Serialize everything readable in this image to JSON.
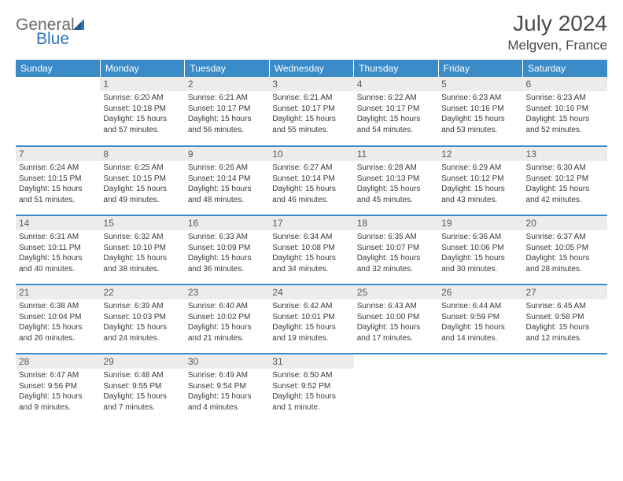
{
  "logo": {
    "part1": "General",
    "part2": "Blue"
  },
  "title": "July 2024",
  "location": "Melgven, France",
  "colors": {
    "header_bg": "#3b8bc9",
    "header_text": "#ffffff",
    "daynum_bg": "#ececec",
    "daynum_text": "#5a5a5a",
    "cell_text": "#3a3a3a",
    "row_border": "#3b8bc9",
    "logo_gray": "#6a6a6a",
    "logo_blue": "#2f74b5",
    "title_color": "#4a4a4a"
  },
  "day_headers": [
    "Sunday",
    "Monday",
    "Tuesday",
    "Wednesday",
    "Thursday",
    "Friday",
    "Saturday"
  ],
  "weeks": [
    [
      {
        "empty": true
      },
      {
        "n": "1",
        "sunrise": "6:20 AM",
        "sunset": "10:18 PM",
        "daylight": "15 hours and 57 minutes."
      },
      {
        "n": "2",
        "sunrise": "6:21 AM",
        "sunset": "10:17 PM",
        "daylight": "15 hours and 56 minutes."
      },
      {
        "n": "3",
        "sunrise": "6:21 AM",
        "sunset": "10:17 PM",
        "daylight": "15 hours and 55 minutes."
      },
      {
        "n": "4",
        "sunrise": "6:22 AM",
        "sunset": "10:17 PM",
        "daylight": "15 hours and 54 minutes."
      },
      {
        "n": "5",
        "sunrise": "6:23 AM",
        "sunset": "10:16 PM",
        "daylight": "15 hours and 53 minutes."
      },
      {
        "n": "6",
        "sunrise": "6:23 AM",
        "sunset": "10:16 PM",
        "daylight": "15 hours and 52 minutes."
      }
    ],
    [
      {
        "n": "7",
        "sunrise": "6:24 AM",
        "sunset": "10:15 PM",
        "daylight": "15 hours and 51 minutes."
      },
      {
        "n": "8",
        "sunrise": "6:25 AM",
        "sunset": "10:15 PM",
        "daylight": "15 hours and 49 minutes."
      },
      {
        "n": "9",
        "sunrise": "6:26 AM",
        "sunset": "10:14 PM",
        "daylight": "15 hours and 48 minutes."
      },
      {
        "n": "10",
        "sunrise": "6:27 AM",
        "sunset": "10:14 PM",
        "daylight": "15 hours and 46 minutes."
      },
      {
        "n": "11",
        "sunrise": "6:28 AM",
        "sunset": "10:13 PM",
        "daylight": "15 hours and 45 minutes."
      },
      {
        "n": "12",
        "sunrise": "6:29 AM",
        "sunset": "10:12 PM",
        "daylight": "15 hours and 43 minutes."
      },
      {
        "n": "13",
        "sunrise": "6:30 AM",
        "sunset": "10:12 PM",
        "daylight": "15 hours and 42 minutes."
      }
    ],
    [
      {
        "n": "14",
        "sunrise": "6:31 AM",
        "sunset": "10:11 PM",
        "daylight": "15 hours and 40 minutes."
      },
      {
        "n": "15",
        "sunrise": "6:32 AM",
        "sunset": "10:10 PM",
        "daylight": "15 hours and 38 minutes."
      },
      {
        "n": "16",
        "sunrise": "6:33 AM",
        "sunset": "10:09 PM",
        "daylight": "15 hours and 36 minutes."
      },
      {
        "n": "17",
        "sunrise": "6:34 AM",
        "sunset": "10:08 PM",
        "daylight": "15 hours and 34 minutes."
      },
      {
        "n": "18",
        "sunrise": "6:35 AM",
        "sunset": "10:07 PM",
        "daylight": "15 hours and 32 minutes."
      },
      {
        "n": "19",
        "sunrise": "6:36 AM",
        "sunset": "10:06 PM",
        "daylight": "15 hours and 30 minutes."
      },
      {
        "n": "20",
        "sunrise": "6:37 AM",
        "sunset": "10:05 PM",
        "daylight": "15 hours and 28 minutes."
      }
    ],
    [
      {
        "n": "21",
        "sunrise": "6:38 AM",
        "sunset": "10:04 PM",
        "daylight": "15 hours and 26 minutes."
      },
      {
        "n": "22",
        "sunrise": "6:39 AM",
        "sunset": "10:03 PM",
        "daylight": "15 hours and 24 minutes."
      },
      {
        "n": "23",
        "sunrise": "6:40 AM",
        "sunset": "10:02 PM",
        "daylight": "15 hours and 21 minutes."
      },
      {
        "n": "24",
        "sunrise": "6:42 AM",
        "sunset": "10:01 PM",
        "daylight": "15 hours and 19 minutes."
      },
      {
        "n": "25",
        "sunrise": "6:43 AM",
        "sunset": "10:00 PM",
        "daylight": "15 hours and 17 minutes."
      },
      {
        "n": "26",
        "sunrise": "6:44 AM",
        "sunset": "9:59 PM",
        "daylight": "15 hours and 14 minutes."
      },
      {
        "n": "27",
        "sunrise": "6:45 AM",
        "sunset": "9:58 PM",
        "daylight": "15 hours and 12 minutes."
      }
    ],
    [
      {
        "n": "28",
        "sunrise": "6:47 AM",
        "sunset": "9:56 PM",
        "daylight": "15 hours and 9 minutes."
      },
      {
        "n": "29",
        "sunrise": "6:48 AM",
        "sunset": "9:55 PM",
        "daylight": "15 hours and 7 minutes."
      },
      {
        "n": "30",
        "sunrise": "6:49 AM",
        "sunset": "9:54 PM",
        "daylight": "15 hours and 4 minutes."
      },
      {
        "n": "31",
        "sunrise": "6:50 AM",
        "sunset": "9:52 PM",
        "daylight": "15 hours and 1 minute."
      },
      {
        "empty": true
      },
      {
        "empty": true
      },
      {
        "empty": true
      }
    ]
  ],
  "labels": {
    "sunrise": "Sunrise: ",
    "sunset": "Sunset: ",
    "daylight": "Daylight: "
  }
}
